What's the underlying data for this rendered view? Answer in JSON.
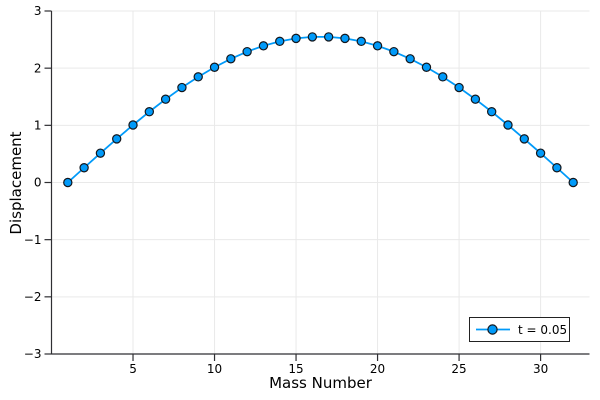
{
  "figure": {
    "background": "#ffffff"
  },
  "axes": {
    "xlabel": "Mass Number",
    "ylabel": "Displacement",
    "x_tick_labels": [
      "5",
      "10",
      "15",
      "20",
      "25",
      "30"
    ],
    "y_tick_labels": [
      "−3",
      "−2",
      "−1",
      "0",
      "1",
      "2",
      "3"
    ]
  },
  "legend": {
    "position": "bottom-right",
    "entries": [
      {
        "label": "t = 0.05",
        "color": "#009af9",
        "marker": "circle"
      }
    ]
  },
  "colors": {
    "series_line": "#009af9",
    "marker_fill": "#009af9",
    "marker_stroke": "#13161c",
    "grid": "#e9e9e9",
    "spine": "#2f2f33",
    "tick_text": "#000000",
    "legend_border": "#222222",
    "background": "#ffffff"
  },
  "chart_data": {
    "type": "line",
    "title": "",
    "xlabel": "Mass Number",
    "ylabel": "Displacement",
    "xlim": [
      0,
      33
    ],
    "ylim": [
      -3,
      3
    ],
    "x_ticks": [
      5,
      10,
      15,
      20,
      25,
      30
    ],
    "y_ticks": [
      -3,
      -2,
      -1,
      0,
      1,
      2,
      3
    ],
    "grid": true,
    "legend_position": "bottom-right",
    "series": [
      {
        "name": "t = 0.05",
        "color": "#009af9",
        "marker": "circle",
        "x": [
          1,
          2,
          3,
          4,
          5,
          6,
          7,
          8,
          9,
          10,
          11,
          12,
          13,
          14,
          15,
          16,
          17,
          18,
          19,
          20,
          21,
          22,
          23,
          24,
          25,
          26,
          27,
          28,
          29,
          30,
          31,
          32
        ],
        "y": [
          0.0,
          0.258,
          0.513,
          0.763,
          1.006,
          1.238,
          1.457,
          1.661,
          1.848,
          2.016,
          2.164,
          2.289,
          2.391,
          2.469,
          2.521,
          2.547,
          2.547,
          2.521,
          2.469,
          2.391,
          2.289,
          2.164,
          2.016,
          1.848,
          1.661,
          1.457,
          1.238,
          1.006,
          0.763,
          0.513,
          0.258,
          0.0
        ]
      }
    ]
  }
}
